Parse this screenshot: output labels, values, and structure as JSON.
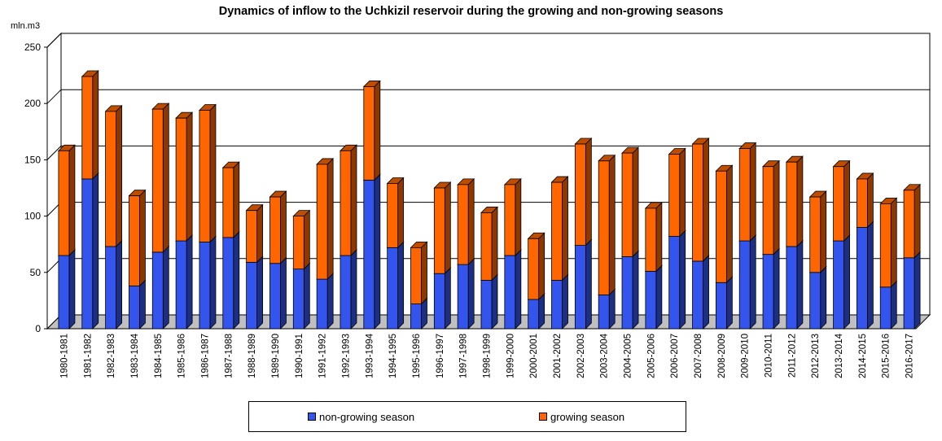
{
  "chart_data": {
    "type": "bar",
    "stacked": true,
    "three_d": true,
    "title": "Dynamics of inflow to the Uchkizil reservoir during the growing and non-growing seasons",
    "ylabel": "mln.m3",
    "ylim": [
      0,
      250
    ],
    "yticks": [
      0,
      50,
      100,
      150,
      200,
      250
    ],
    "grid": true,
    "legend_position": "bottom",
    "categories": [
      "1980-1981",
      "1981-1982",
      "1982-1983",
      "1983-1984",
      "1984-1985",
      "1985-1986",
      "1986-1987",
      "1987-1988",
      "1988-1989",
      "1989-1990",
      "1990-1991",
      "1991-1992",
      "1992-1993",
      "1993-1994",
      "1994-1995",
      "1995-1996",
      "1996-1997",
      "1997-1998",
      "1998-1999",
      "1999-2000",
      "2000-2001",
      "2001-2002",
      "2002-2003",
      "2003-2004",
      "2004-2005",
      "2005-2006",
      "2006-2007",
      "2007-2008",
      "2008-2009",
      "2009-2010",
      "2010-2011",
      "2011-2012",
      "2012-2013",
      "2013-2014",
      "2014-2015",
      "2015-2016",
      "2016-2017"
    ],
    "series": [
      {
        "name": "non-growing season",
        "color": "#3355ee",
        "values": [
          65,
          133,
          73,
          38,
          68,
          78,
          77,
          81,
          59,
          58,
          53,
          44,
          65,
          132,
          72,
          22,
          49,
          57,
          43,
          65,
          26,
          43,
          74,
          30,
          64,
          51,
          82,
          60,
          41,
          78,
          66,
          73,
          50,
          78,
          90,
          37,
          63
        ]
      },
      {
        "name": "growing season",
        "color": "#ff6600",
        "values": [
          93,
          91,
          120,
          80,
          127,
          109,
          117,
          62,
          46,
          59,
          47,
          102,
          93,
          83,
          57,
          50,
          76,
          71,
          60,
          63,
          54,
          87,
          90,
          119,
          92,
          56,
          73,
          104,
          99,
          82,
          78,
          75,
          67,
          66,
          43,
          74,
          60
        ]
      }
    ]
  },
  "legend": {
    "non_growing_label": "non-growing season",
    "growing_label": "growing season"
  }
}
